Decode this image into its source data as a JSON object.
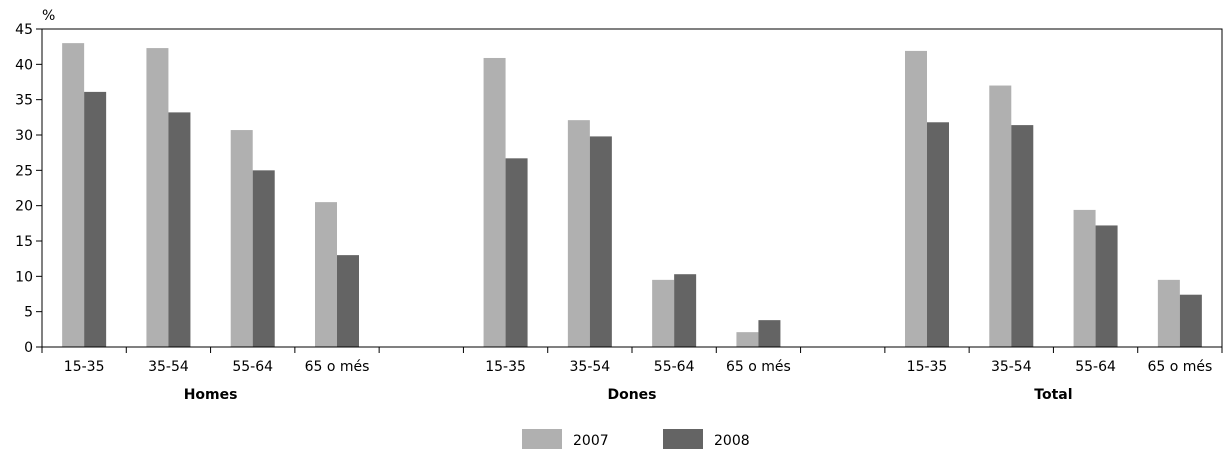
{
  "chart_data": {
    "type": "bar",
    "unit_label": "%",
    "ylim": [
      0,
      45
    ],
    "yticks": [
      0,
      5,
      10,
      15,
      20,
      25,
      30,
      35,
      40,
      45
    ],
    "grid": false,
    "legend_position": "bottom-center",
    "groups": [
      {
        "label": "Homes",
        "categories": [
          "15-35",
          "35-54",
          "55-64",
          "65 o més"
        ],
        "series": [
          {
            "name": "2007",
            "values": [
              43.0,
              42.3,
              30.7,
              20.5
            ]
          },
          {
            "name": "2008",
            "values": [
              36.1,
              33.2,
              25.0,
              13.0
            ]
          }
        ]
      },
      {
        "label": "Dones",
        "categories": [
          "15-35",
          "35-54",
          "55-64",
          "65 o més"
        ],
        "series": [
          {
            "name": "2007",
            "values": [
              40.9,
              32.1,
              9.5,
              2.1
            ]
          },
          {
            "name": "2008",
            "values": [
              26.7,
              29.8,
              10.3,
              3.8
            ]
          }
        ]
      },
      {
        "label": "Total",
        "categories": [
          "15-35",
          "35-54",
          "55-64",
          "65 o més"
        ],
        "series": [
          {
            "name": "2007",
            "values": [
              41.9,
              37.0,
              19.4,
              9.5
            ]
          },
          {
            "name": "2008",
            "values": [
              31.8,
              31.4,
              17.2,
              7.4
            ]
          }
        ]
      }
    ],
    "legend": [
      {
        "name": "2007",
        "color": "#b0b0b0"
      },
      {
        "name": "2008",
        "color": "#646464"
      }
    ]
  }
}
